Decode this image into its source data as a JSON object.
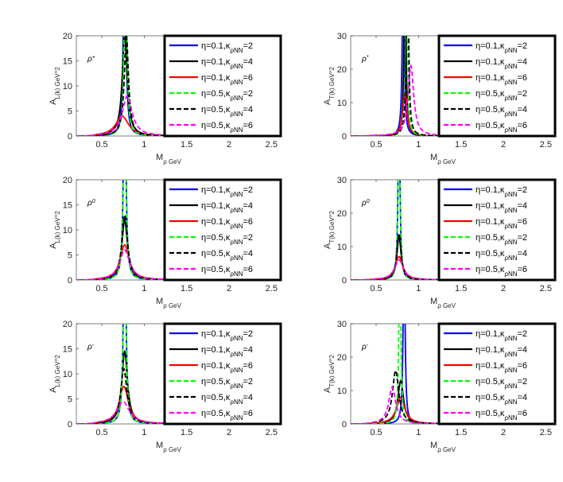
{
  "chart_data": [
    {
      "id": "p1",
      "type": "line",
      "annotation": "ρ+",
      "xlabel": "M_ρ GeV",
      "ylabel": "A_L(k) GeV^2",
      "xlim": [
        0.2,
        2.6
      ],
      "ylim": [
        0,
        20
      ],
      "xticks": [
        0.5,
        1,
        1.5,
        2,
        2.5
      ],
      "yticks": [
        0,
        5,
        10,
        15,
        20
      ],
      "legend_position": "top-right",
      "series": [
        {
          "name": "η=0.1,κ_ρNN=2",
          "color": "#0000ff",
          "dash": "solid",
          "peak_x": 0.77,
          "peak_y": 50,
          "width": 0.015
        },
        {
          "name": "η=0.1,κ_ρNN=4",
          "color": "#000000",
          "dash": "solid",
          "peak_x": 0.77,
          "peak_y": 20,
          "width": 0.035
        },
        {
          "name": "η=0.1,κ_ρNN=6",
          "color": "#ff0000",
          "dash": "solid",
          "peak_x": 0.74,
          "peak_y": 4,
          "width": 0.09
        },
        {
          "name": "η=0.5,κ_ρNN=2",
          "color": "#00ff00",
          "dash": "dash",
          "peak_x": 0.78,
          "peak_y": 50,
          "width": 0.015
        },
        {
          "name": "η=0.5,κ_ρNN=4",
          "color": "#000000",
          "dash": "dash",
          "peak_x": 0.79,
          "peak_y": 20,
          "width": 0.03
        },
        {
          "name": "η=0.5,κ_ρNN=6",
          "color": "#ff00ff",
          "dash": "dash",
          "peak_x": 0.8,
          "peak_y": 8,
          "width": 0.07
        }
      ]
    },
    {
      "id": "p2",
      "type": "line",
      "annotation": "ρ*",
      "xlabel": "M_ρ GeV",
      "ylabel": "A_T(k) GeV^2",
      "xlim": [
        0.2,
        2.6
      ],
      "ylim": [
        0,
        30
      ],
      "xticks": [
        0.5,
        1,
        1.5,
        2,
        2.5
      ],
      "yticks": [
        0,
        10,
        20,
        30
      ],
      "legend_position": "top-right",
      "series": [
        {
          "name": "η=0.1,κ_ρNN=2",
          "color": "#0000ff",
          "dash": "solid",
          "peak_x": 0.82,
          "peak_y": 60,
          "width": 0.012
        },
        {
          "name": "η=0.1,κ_ρNN=4",
          "color": "#000000",
          "dash": "solid",
          "peak_x": 0.84,
          "peak_y": 60,
          "width": 0.012
        },
        {
          "name": "η=0.1,κ_ρNN=6",
          "color": "#ff0000",
          "dash": "solid",
          "peak_x": 0.84,
          "peak_y": 13,
          "width": 0.03
        },
        {
          "name": "η=0.5,κ_ρNN=2",
          "color": "#00ff00",
          "dash": "dash",
          "peak_x": 0.86,
          "peak_y": 60,
          "width": 0.012
        },
        {
          "name": "η=0.5,κ_ρNN=4",
          "color": "#000000",
          "dash": "dash",
          "peak_x": 0.87,
          "peak_y": 60,
          "width": 0.014
        },
        {
          "name": "η=0.5,κ_ρNN=6",
          "color": "#ff00ff",
          "dash": "dash",
          "peak_x": 0.91,
          "peak_y": 21,
          "width": 0.04
        }
      ]
    },
    {
      "id": "p3",
      "type": "line",
      "annotation": "ρ0",
      "xlabel": "M_ρ GeV",
      "ylabel": "A_L(k) GeV^2",
      "xlim": [
        0.2,
        2.6
      ],
      "ylim": [
        0,
        20
      ],
      "xticks": [
        0.5,
        1,
        1.5,
        2,
        2.5
      ],
      "yticks": [
        0,
        5,
        10,
        15,
        20
      ],
      "legend_position": "top-right",
      "series": [
        {
          "name": "η=0.1,κ_ρNN=2",
          "color": "#0000ff",
          "dash": "solid",
          "peak_x": 0.77,
          "peak_y": 50,
          "width": 0.015
        },
        {
          "name": "η=0.1,κ_ρNN=4",
          "color": "#000000",
          "dash": "solid",
          "peak_x": 0.77,
          "peak_y": 12,
          "width": 0.04
        },
        {
          "name": "η=0.1,κ_ρNN=6",
          "color": "#ff0000",
          "dash": "solid",
          "peak_x": 0.77,
          "peak_y": 7,
          "width": 0.065
        },
        {
          "name": "η=0.5,κ_ρNN=2",
          "color": "#00ff00",
          "dash": "dash",
          "peak_x": 0.77,
          "peak_y": 50,
          "width": 0.015
        },
        {
          "name": "η=0.5,κ_ρNN=4",
          "color": "#000000",
          "dash": "dash",
          "peak_x": 0.77,
          "peak_y": 13,
          "width": 0.04
        },
        {
          "name": "η=0.5,κ_ρNN=6",
          "color": "#ff00ff",
          "dash": "dash",
          "peak_x": 0.77,
          "peak_y": 6,
          "width": 0.07
        }
      ]
    },
    {
      "id": "p4",
      "type": "line",
      "annotation": "ρ0",
      "xlabel": "M_ρ GeV",
      "ylabel": "A_T(k) GeV^2",
      "xlim": [
        0.2,
        2.6
      ],
      "ylim": [
        0,
        30
      ],
      "xticks": [
        0.5,
        1,
        1.5,
        2,
        2.5
      ],
      "yticks": [
        0,
        10,
        20,
        30
      ],
      "legend_position": "top-right",
      "series": [
        {
          "name": "η=0.1,κ_ρNN=2",
          "color": "#0000ff",
          "dash": "solid",
          "peak_x": 0.77,
          "peak_y": 60,
          "width": 0.012
        },
        {
          "name": "η=0.1,κ_ρNN=4",
          "color": "#000000",
          "dash": "solid",
          "peak_x": 0.77,
          "peak_y": 13,
          "width": 0.03
        },
        {
          "name": "η=0.1,κ_ρNN=6",
          "color": "#ff0000",
          "dash": "solid",
          "peak_x": 0.77,
          "peak_y": 7,
          "width": 0.055
        },
        {
          "name": "η=0.5,κ_ρNN=2",
          "color": "#00ff00",
          "dash": "dash",
          "peak_x": 0.77,
          "peak_y": 60,
          "width": 0.012
        },
        {
          "name": "η=0.5,κ_ρNN=4",
          "color": "#000000",
          "dash": "dash",
          "peak_x": 0.77,
          "peak_y": 14,
          "width": 0.03
        },
        {
          "name": "η=0.5,κ_ρNN=6",
          "color": "#ff00ff",
          "dash": "dash",
          "peak_x": 0.77,
          "peak_y": 6,
          "width": 0.06
        }
      ]
    },
    {
      "id": "p5",
      "type": "line",
      "annotation": "ρ-",
      "xlabel": "M_ρ GeV",
      "ylabel": "A_L(k) GeV^2",
      "xlim": [
        0.2,
        2.6
      ],
      "ylim": [
        0,
        20
      ],
      "xticks": [
        0.5,
        1,
        1.5,
        2,
        2.5
      ],
      "yticks": [
        0,
        5,
        10,
        15,
        20
      ],
      "legend_position": "top-right",
      "series": [
        {
          "name": "η=0.1,κ_ρNN=2",
          "color": "#0000ff",
          "dash": "solid",
          "peak_x": 0.77,
          "peak_y": 50,
          "width": 0.015
        },
        {
          "name": "η=0.1,κ_ρNN=4",
          "color": "#000000",
          "dash": "solid",
          "peak_x": 0.77,
          "peak_y": 14.5,
          "width": 0.04
        },
        {
          "name": "η=0.1,κ_ρNN=6",
          "color": "#ff0000",
          "dash": "solid",
          "peak_x": 0.76,
          "peak_y": 7.5,
          "width": 0.065
        },
        {
          "name": "η=0.5,κ_ρNN=2",
          "color": "#00ff00",
          "dash": "dash",
          "peak_x": 0.77,
          "peak_y": 50,
          "width": 0.015
        },
        {
          "name": "η=0.5,κ_ρNN=4",
          "color": "#000000",
          "dash": "dash",
          "peak_x": 0.76,
          "peak_y": 11,
          "width": 0.045
        },
        {
          "name": "η=0.5,κ_ρNN=6",
          "color": "#ff00ff",
          "dash": "dash",
          "peak_x": 0.75,
          "peak_y": 4.5,
          "width": 0.09
        }
      ]
    },
    {
      "id": "p6",
      "type": "line",
      "annotation": "ρ-",
      "xlabel": "M_ρ GeV",
      "ylabel": "A_T(k) GeV^2",
      "xlim": [
        0.2,
        2.6
      ],
      "ylim": [
        0,
        30
      ],
      "xticks": [
        0.5,
        1,
        1.5,
        2,
        2.5
      ],
      "yticks": [
        0,
        10,
        20,
        30
      ],
      "legend_position": "top-right",
      "series": [
        {
          "name": "η=0.1,κ_ρNN=2",
          "color": "#0000ff",
          "dash": "solid",
          "peak_x": 0.83,
          "peak_y": 60,
          "width": 0.012
        },
        {
          "name": "η=0.1,κ_ρNN=4",
          "color": "#000000",
          "dash": "solid",
          "peak_x": 0.79,
          "peak_y": 13,
          "width": 0.04
        },
        {
          "name": "η=0.1,κ_ρNN=6",
          "color": "#ff0000",
          "dash": "solid",
          "peak_x": 0.79,
          "peak_y": 8,
          "width": 0.06
        },
        {
          "name": "η=0.5,κ_ρNN=2",
          "color": "#00ff00",
          "dash": "dash",
          "peak_x": 0.78,
          "peak_y": 60,
          "width": 0.012
        },
        {
          "name": "η=0.5,κ_ρNN=4",
          "color": "#000000",
          "dash": "dash",
          "peak_x": 0.73,
          "peak_y": 16,
          "width": 0.045
        },
        {
          "name": "η=0.5,κ_ρNN=6",
          "color": "#ff00ff",
          "dash": "dash",
          "peak_x": 0.69,
          "peak_y": 11,
          "width": 0.05
        }
      ]
    }
  ]
}
